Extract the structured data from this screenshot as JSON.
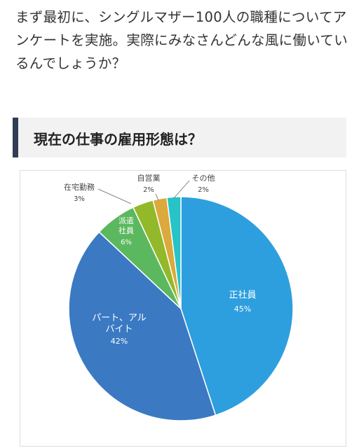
{
  "article": {
    "paragraph": "まず最初に、シングルマザー100人の職種についてアンケートを実施。実際にみなさんどんな風に働いているんでしょうか？",
    "heading": "現在の仕事の雇用形態は？"
  },
  "chart_data": {
    "type": "pie",
    "categories": [
      "正社員",
      "パート、アルバイト",
      "派遣社員",
      "在宅勤務",
      "自営業",
      "その他"
    ],
    "values": [
      45,
      42,
      6,
      3,
      2,
      2
    ],
    "value_labels": [
      "45%",
      "42%",
      "6%",
      "3%",
      "2%",
      "2%"
    ],
    "colors": [
      "#2e9fde",
      "#3b79c3",
      "#5cb85f",
      "#93b92a",
      "#dba93c",
      "#27c3c6"
    ]
  }
}
